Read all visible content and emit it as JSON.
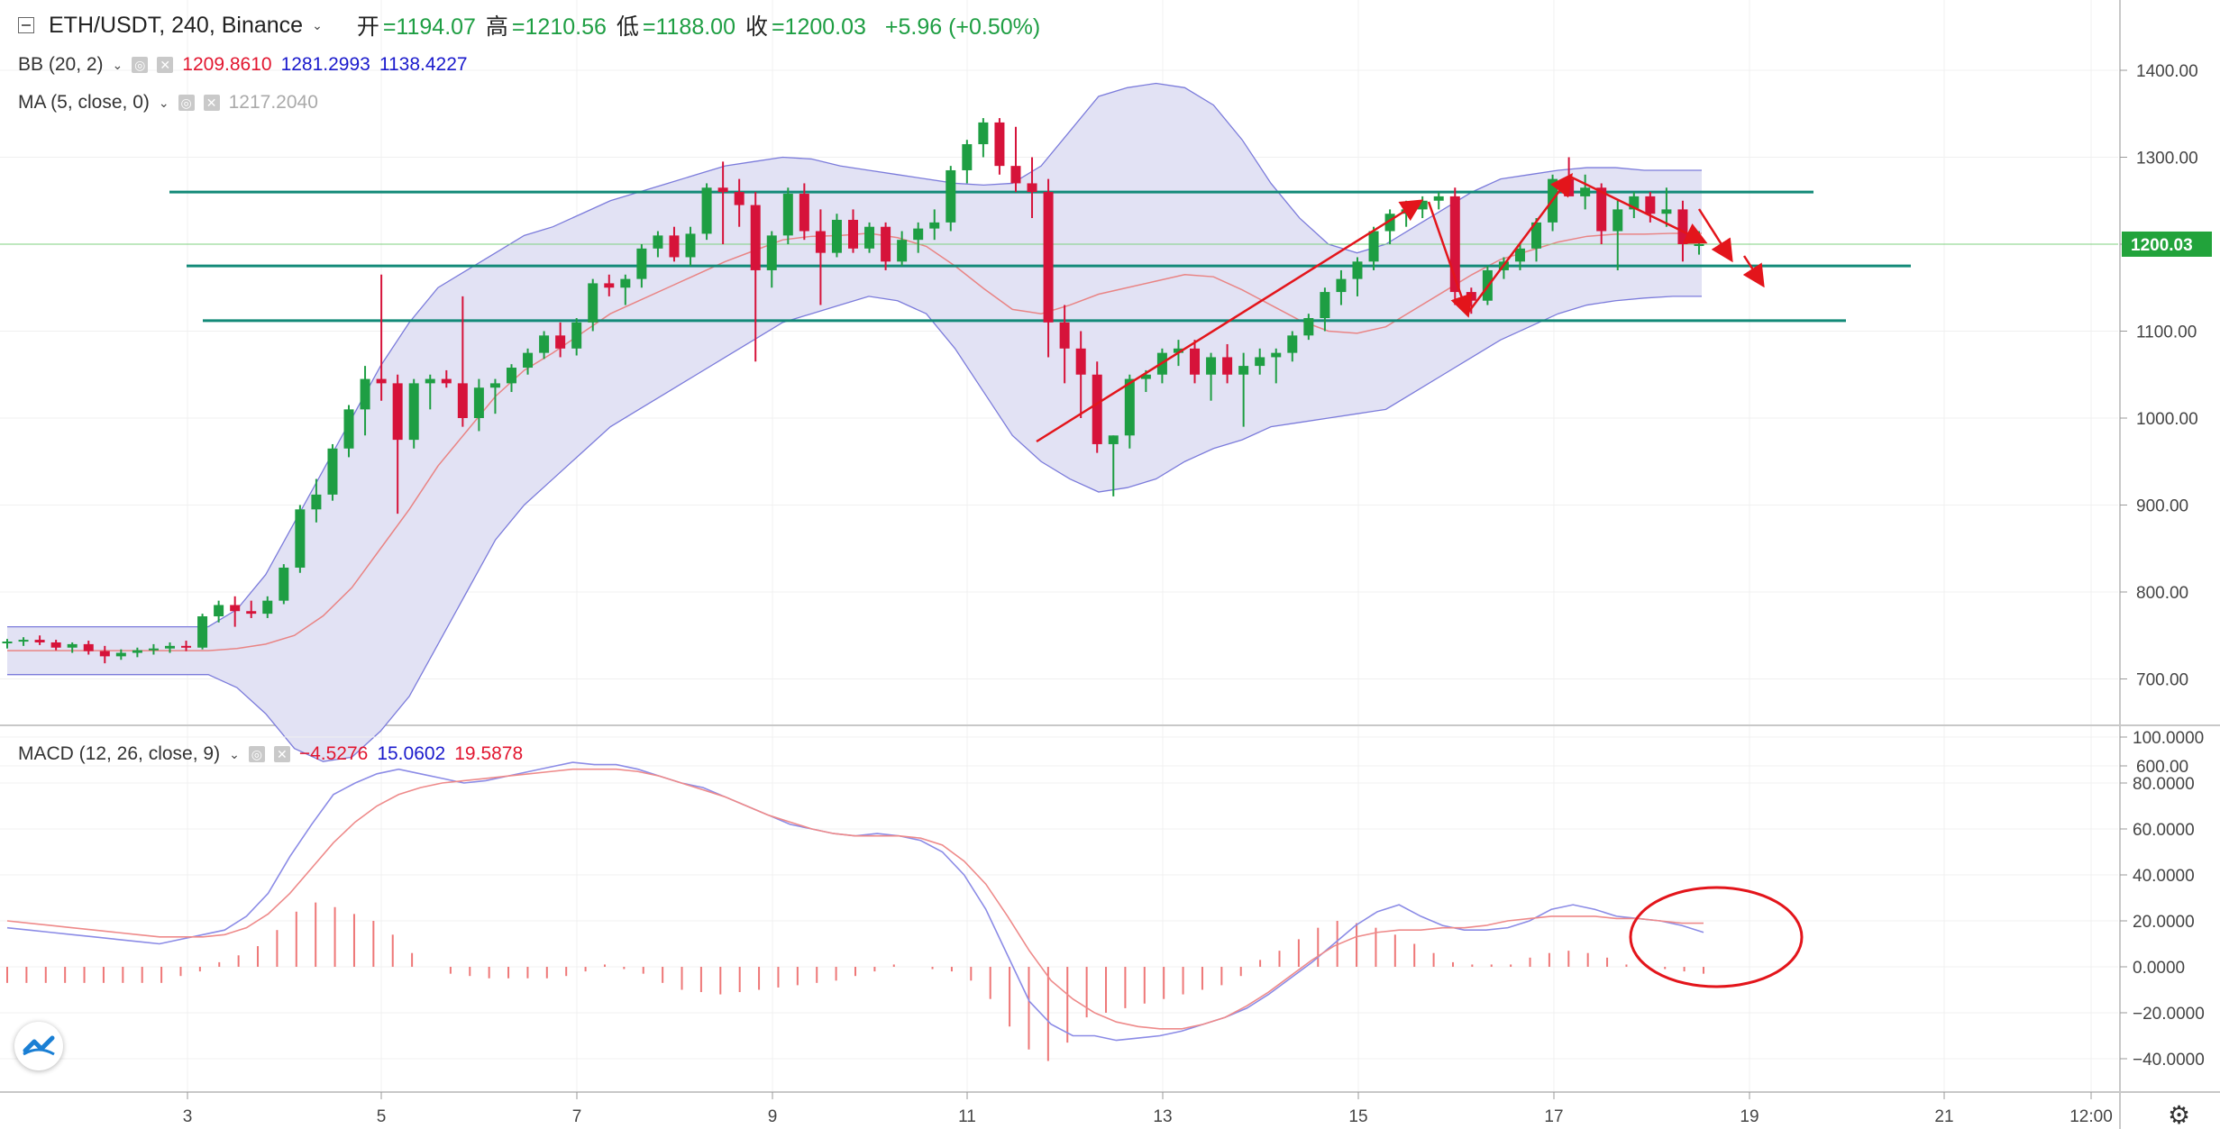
{
  "header": {
    "symbol": "ETH/USDT, 240, Binance",
    "open_label": "开",
    "open": "=1194.07",
    "high_label": "高",
    "high": "=1210.56",
    "low_label": "低",
    "low": "=1188.00",
    "close_label": "收",
    "close": "=1200.03",
    "change": "+5.96 (+0.50%)"
  },
  "bb": {
    "label": "BB (20, 2)",
    "v1": "1209.8610",
    "v2": "1281.2993",
    "v3": "1138.4227"
  },
  "ma": {
    "label": "MA (5, close, 0)",
    "v1": "1217.2040"
  },
  "macd": {
    "label": "MACD (12, 26, close, 9)",
    "v1": "−4.5276",
    "v2": "15.0602",
    "v3": "19.5878"
  },
  "price_axis": {
    "labels": [
      "1400.00",
      "1300.00",
      "1200.00",
      "1100.00",
      "1000.00",
      "900.00",
      "800.00",
      "700.00",
      "600.00"
    ],
    "current": "1200.03"
  },
  "macd_axis": {
    "labels": [
      "100.0000",
      "80.0000",
      "60.0000",
      "40.0000",
      "20.0000",
      "0.0000",
      "−20.0000",
      "−40.0000"
    ]
  },
  "time_axis": {
    "labels": [
      "3",
      "5",
      "7",
      "9",
      "11",
      "13",
      "15",
      "17",
      "19",
      "21",
      "12:00"
    ]
  },
  "colors": {
    "up": "#1e9e43",
    "down": "#d6133a",
    "band_fill": "#e2e2f4",
    "band_line": "#7b7bdb",
    "ma_line": "#e98484",
    "hlines": "#138a78",
    "arrows": "#e3151b",
    "macd_line": "#8b8be6",
    "signal_line": "#ee8a8a",
    "hist": "#ee7777"
  },
  "chart_data": {
    "type": "candlestick",
    "x_unit": "bar index (240-minute bars)",
    "ylim": [
      560,
      1440
    ],
    "candles": [
      [
        741,
        746,
        735,
        743
      ],
      [
        743,
        748,
        738,
        745
      ],
      [
        745,
        750,
        739,
        742
      ],
      [
        742,
        745,
        733,
        736
      ],
      [
        736,
        742,
        730,
        740
      ],
      [
        740,
        744,
        728,
        732
      ],
      [
        732,
        738,
        718,
        726
      ],
      [
        726,
        734,
        722,
        730
      ],
      [
        730,
        736,
        725,
        733
      ],
      [
        733,
        740,
        728,
        735
      ],
      [
        735,
        742,
        730,
        738
      ],
      [
        738,
        744,
        732,
        736
      ],
      [
        736,
        775,
        734,
        772
      ],
      [
        772,
        790,
        765,
        785
      ],
      [
        785,
        795,
        760,
        778
      ],
      [
        778,
        790,
        770,
        775
      ],
      [
        775,
        795,
        770,
        790
      ],
      [
        790,
        832,
        786,
        828
      ],
      [
        828,
        900,
        822,
        895
      ],
      [
        895,
        930,
        880,
        912
      ],
      [
        912,
        970,
        905,
        965
      ],
      [
        965,
        1015,
        955,
        1010
      ],
      [
        1010,
        1060,
        980,
        1045
      ],
      [
        1045,
        1165,
        1020,
        1040
      ],
      [
        1040,
        1050,
        890,
        975
      ],
      [
        975,
        1045,
        965,
        1040
      ],
      [
        1040,
        1050,
        1010,
        1045
      ],
      [
        1045,
        1055,
        1035,
        1040
      ],
      [
        1040,
        1140,
        990,
        1000
      ],
      [
        1000,
        1045,
        985,
        1035
      ],
      [
        1035,
        1045,
        1005,
        1040
      ],
      [
        1040,
        1062,
        1030,
        1058
      ],
      [
        1058,
        1080,
        1050,
        1075
      ],
      [
        1075,
        1100,
        1068,
        1095
      ],
      [
        1095,
        1110,
        1070,
        1080
      ],
      [
        1080,
        1115,
        1072,
        1110
      ],
      [
        1110,
        1160,
        1100,
        1155
      ],
      [
        1155,
        1165,
        1140,
        1150
      ],
      [
        1150,
        1165,
        1130,
        1160
      ],
      [
        1160,
        1200,
        1150,
        1195
      ],
      [
        1195,
        1215,
        1185,
        1210
      ],
      [
        1210,
        1220,
        1180,
        1185
      ],
      [
        1185,
        1220,
        1175,
        1212
      ],
      [
        1212,
        1270,
        1205,
        1265
      ],
      [
        1265,
        1295,
        1200,
        1260
      ],
      [
        1260,
        1275,
        1220,
        1245
      ],
      [
        1245,
        1260,
        1065,
        1170
      ],
      [
        1170,
        1215,
        1150,
        1210
      ],
      [
        1210,
        1265,
        1200,
        1258
      ],
      [
        1258,
        1270,
        1205,
        1215
      ],
      [
        1215,
        1240,
        1130,
        1190
      ],
      [
        1190,
        1235,
        1185,
        1228
      ],
      [
        1228,
        1240,
        1190,
        1195
      ],
      [
        1195,
        1225,
        1190,
        1220
      ],
      [
        1220,
        1225,
        1170,
        1180
      ],
      [
        1180,
        1215,
        1175,
        1205
      ],
      [
        1205,
        1225,
        1190,
        1218
      ],
      [
        1218,
        1240,
        1205,
        1225
      ],
      [
        1225,
        1290,
        1215,
        1285
      ],
      [
        1285,
        1320,
        1270,
        1315
      ],
      [
        1315,
        1345,
        1300,
        1340
      ],
      [
        1340,
        1345,
        1280,
        1290
      ],
      [
        1290,
        1335,
        1260,
        1270
      ],
      [
        1270,
        1300,
        1230,
        1260
      ],
      [
        1260,
        1275,
        1070,
        1110
      ],
      [
        1110,
        1130,
        1040,
        1080
      ],
      [
        1080,
        1100,
        1000,
        1050
      ],
      [
        1050,
        1065,
        960,
        970
      ],
      [
        970,
        980,
        910,
        980
      ],
      [
        980,
        1050,
        965,
        1045
      ],
      [
        1045,
        1055,
        1030,
        1050
      ],
      [
        1050,
        1080,
        1040,
        1075
      ],
      [
        1075,
        1090,
        1060,
        1080
      ],
      [
        1080,
        1090,
        1040,
        1050
      ],
      [
        1050,
        1075,
        1020,
        1070
      ],
      [
        1070,
        1085,
        1040,
        1050
      ],
      [
        1050,
        1075,
        990,
        1060
      ],
      [
        1060,
        1080,
        1050,
        1070
      ],
      [
        1070,
        1080,
        1040,
        1075
      ],
      [
        1075,
        1100,
        1065,
        1095
      ],
      [
        1095,
        1120,
        1090,
        1115
      ],
      [
        1115,
        1150,
        1100,
        1145
      ],
      [
        1145,
        1170,
        1130,
        1160
      ],
      [
        1160,
        1185,
        1140,
        1180
      ],
      [
        1180,
        1220,
        1170,
        1215
      ],
      [
        1215,
        1240,
        1200,
        1235
      ],
      [
        1235,
        1250,
        1220,
        1240
      ],
      [
        1240,
        1255,
        1230,
        1250
      ],
      [
        1250,
        1260,
        1240,
        1255
      ],
      [
        1255,
        1265,
        1130,
        1145
      ],
      [
        1145,
        1150,
        1120,
        1135
      ],
      [
        1135,
        1175,
        1130,
        1170
      ],
      [
        1170,
        1185,
        1160,
        1180
      ],
      [
        1180,
        1200,
        1170,
        1195
      ],
      [
        1195,
        1230,
        1180,
        1225
      ],
      [
        1225,
        1280,
        1215,
        1275
      ],
      [
        1275,
        1300,
        1260,
        1255
      ],
      [
        1255,
        1280,
        1240,
        1265
      ],
      [
        1265,
        1270,
        1200,
        1215
      ],
      [
        1215,
        1250,
        1170,
        1240
      ],
      [
        1240,
        1260,
        1230,
        1255
      ],
      [
        1255,
        1260,
        1225,
        1235
      ],
      [
        1235,
        1265,
        1220,
        1240
      ],
      [
        1240,
        1250,
        1180,
        1200
      ],
      [
        1200,
        1215,
        1188,
        1200
      ]
    ],
    "horizontal_levels": [
      1260,
      1175,
      1112
    ],
    "bb_upper": [
      760,
      760,
      760,
      760,
      760,
      760,
      760,
      760,
      780,
      820,
      880,
      940,
      1000,
      1060,
      1110,
      1150,
      1170,
      1190,
      1210,
      1220,
      1235,
      1250,
      1260,
      1270,
      1280,
      1290,
      1295,
      1300,
      1298,
      1290,
      1285,
      1280,
      1275,
      1270,
      1268,
      1270,
      1290,
      1330,
      1370,
      1380,
      1385,
      1380,
      1360,
      1320,
      1270,
      1230,
      1200,
      1190,
      1200,
      1220,
      1240,
      1260,
      1275,
      1280,
      1285,
      1288,
      1288,
      1285,
      1285,
      1285
    ],
    "bb_lower": [
      705,
      705,
      705,
      705,
      705,
      705,
      705,
      705,
      690,
      660,
      620,
      605,
      610,
      640,
      680,
      740,
      800,
      860,
      900,
      930,
      960,
      990,
      1010,
      1030,
      1050,
      1070,
      1090,
      1110,
      1120,
      1130,
      1140,
      1135,
      1120,
      1080,
      1030,
      980,
      950,
      930,
      915,
      920,
      930,
      950,
      965,
      975,
      990,
      995,
      1000,
      1005,
      1010,
      1030,
      1050,
      1070,
      1090,
      1105,
      1120,
      1130,
      1135,
      1138,
      1140,
      1140
    ],
    "macd_hist": [
      -7,
      -7,
      -7,
      -7,
      -7,
      -7,
      -7,
      -7,
      -7,
      -4,
      -2,
      2,
      5,
      9,
      16,
      24,
      28,
      26,
      23,
      20,
      14,
      6,
      0,
      -3,
      -4,
      -5,
      -5,
      -5,
      -5,
      -4,
      -2,
      1,
      -1,
      -3,
      -7,
      -10,
      -11,
      -12,
      -11,
      -10,
      -9,
      -8,
      -7,
      -6,
      -4,
      -2,
      1,
      0,
      -1,
      -2,
      -6,
      -14,
      -26,
      -36,
      -41,
      -33,
      -22,
      -20,
      -18,
      -16,
      -14,
      -12,
      -10,
      -8,
      -4,
      3,
      7,
      12,
      17,
      20,
      19,
      17,
      14,
      10,
      6,
      2,
      1,
      1,
      1,
      4,
      6,
      7,
      6,
      4,
      1,
      0,
      -1,
      -2,
      -3
    ]
  }
}
